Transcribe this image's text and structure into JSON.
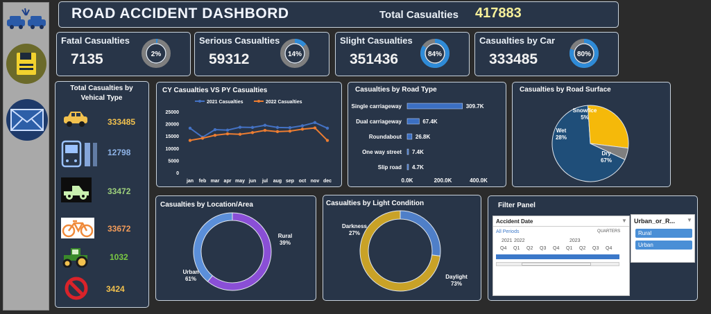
{
  "header": {
    "title": "ROAD ACCIDENT DASHBORD",
    "total_label": "Total Casualties",
    "total_value": "417883"
  },
  "sidebar": {
    "items": [
      "car-logo",
      "save-icon",
      "mail-icon"
    ]
  },
  "kpis": [
    {
      "label": "Fatal Casualties",
      "value": "7135",
      "pct": "2%",
      "fraction": 0.02
    },
    {
      "label": "Serious Casualties",
      "value": "59312",
      "pct": "14%",
      "fraction": 0.14
    },
    {
      "label": "Slight Casualties",
      "value": "351436",
      "pct": "84%",
      "fraction": 0.84
    },
    {
      "label": "Casualties by Car",
      "value": "333485",
      "pct": "80%",
      "fraction": 0.8
    }
  ],
  "vehicles": {
    "title_line1": "Total Casualties by",
    "title_line2": "Vehical Type",
    "items": [
      {
        "icon": "car-icon",
        "value": "333485",
        "color": "#f2c14e"
      },
      {
        "icon": "bus-icon",
        "value": "12798",
        "color": "#8fb4e8"
      },
      {
        "icon": "truck-icon",
        "value": "33472",
        "color": "#9ed07c"
      },
      {
        "icon": "bike-icon",
        "value": "33672",
        "color": "#f39c5a"
      },
      {
        "icon": "tractor-icon",
        "value": "1032",
        "color": "#7ac943"
      },
      {
        "icon": "other-icon",
        "value": "3424",
        "color": "#f2c14e"
      }
    ]
  },
  "chart_data": [
    {
      "type": "line",
      "title": "CY Casualties VS PY Casualties",
      "categories": [
        "jan",
        "feb",
        "mar",
        "apr",
        "may",
        "jun",
        "jul",
        "aug",
        "sep",
        "oct",
        "nov",
        "dec"
      ],
      "series": [
        {
          "name": "2021 Casualties",
          "color": "#4472c4",
          "values": [
            18200,
            14500,
            17600,
            17400,
            18600,
            18500,
            19400,
            18500,
            18400,
            19200,
            20500,
            18200
          ]
        },
        {
          "name": "2022 Casualties",
          "color": "#ed7d31",
          "values": [
            13200,
            14100,
            15300,
            15900,
            15700,
            16400,
            17300,
            16800,
            17000,
            17800,
            18300,
            13200
          ]
        }
      ],
      "yticks": [
        "0",
        "5000",
        "10000",
        "15000",
        "20000",
        "25000"
      ],
      "ylim": [
        0,
        25000
      ]
    },
    {
      "type": "bar",
      "orientation": "horizontal",
      "title": "Casualties by Road Type",
      "categories": [
        "Single carriageway",
        "Dual carriageway",
        "Roundabout",
        "One way street",
        "Slip road"
      ],
      "values": [
        309.7,
        67.4,
        26.8,
        7.4,
        4.7
      ],
      "labels": [
        "309.7K",
        "67.4K",
        "26.8K",
        "7.4K",
        "4.7K"
      ],
      "xticks": [
        "0.0K",
        "200.0K",
        "400.0K"
      ],
      "xlim": [
        0,
        400
      ]
    },
    {
      "type": "pie",
      "title": "Casualties by Road Surface",
      "slices": [
        {
          "name": "Dry",
          "pct": "67%",
          "value": 67,
          "color": "#1f4e79"
        },
        {
          "name": "Wet",
          "pct": "28%",
          "value": 28,
          "color": "#f5b90a"
        },
        {
          "name": "Snow/Ice",
          "pct": "5%",
          "value": 5,
          "color": "#7f7f7f"
        }
      ]
    },
    {
      "type": "pie",
      "title": "Casualties by Location/Area",
      "slices": [
        {
          "name": "Urban",
          "pct": "61%",
          "value": 61,
          "color": "#8a4fd6"
        },
        {
          "name": "Rural",
          "pct": "39%",
          "value": 39,
          "color": "#5b8fd9"
        }
      ]
    },
    {
      "type": "pie",
      "title": "Casualties by Light Condition",
      "slices": [
        {
          "name": "Daylight",
          "pct": "73%",
          "value": 73,
          "color": "#c9a227"
        },
        {
          "name": "Darkness",
          "pct": "27%",
          "value": 27,
          "color": "#4f7fc8"
        }
      ]
    }
  ],
  "filter": {
    "title": "Filter Panel",
    "date_slicer": {
      "header": "Accident Date",
      "periods_label": "All Periods",
      "granularity": "QUARTERS",
      "years": [
        "2021",
        "2022",
        "2023"
      ],
      "quarters": [
        "Q4",
        "Q1",
        "Q2",
        "Q3",
        "Q4",
        "Q1",
        "Q2",
        "Q3",
        "Q4"
      ]
    },
    "area_slicer": {
      "header": "Urban_or_R...",
      "options": [
        "Rural",
        "Urban"
      ]
    }
  }
}
